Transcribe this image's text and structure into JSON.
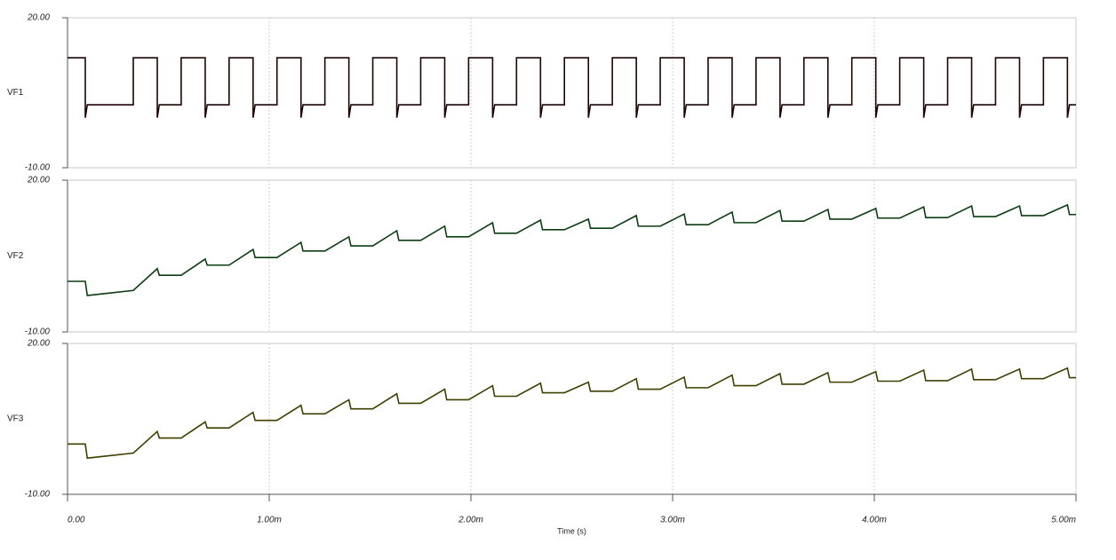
{
  "chart_data": [
    {
      "type": "line",
      "ylabel": "VF1",
      "ylim": [
        -10,
        20
      ],
      "yticks": [
        {
          "value": -10,
          "label": "-10.00"
        },
        {
          "value": 20,
          "label": "20.00"
        }
      ],
      "grid": true,
      "x": [
        0,
        8.8e-05,
        8.8e-05,
        9.8e-05,
        0.000326,
        0.000326,
        0.000445,
        0.000445,
        0.000455,
        0.0005635,
        0.0005635,
        0.0006825,
        0.0006825,
        0.0006925,
        0.000801,
        0.000801,
        0.00092,
        0.00092,
        0.00093,
        0.0010385,
        0.0010385,
        0.0011575,
        0.0011575,
        0.0011675,
        0.001276,
        0.001276,
        0.001395,
        0.001395,
        0.001405,
        0.0015135,
        0.0015135,
        0.0016325,
        0.0016325,
        0.0016425,
        0.001751,
        0.001751,
        0.00187,
        0.00187,
        0.00188,
        0.0019885,
        0.0019885,
        0.0021075,
        0.0021075,
        0.0021175,
        0.002226,
        0.002226,
        0.002345,
        0.002345,
        0.002355,
        0.0024635,
        0.0024635,
        0.0025825,
        0.0025825,
        0.0025925,
        0.002701,
        0.002701,
        0.00282,
        0.00282,
        0.00283,
        0.0029385,
        0.0029385,
        0.0030575,
        0.0030575,
        0.0030675,
        0.003176,
        0.003176,
        0.003295,
        0.003295,
        0.003305,
        0.0034135,
        0.0034135,
        0.0035325,
        0.0035325,
        0.0035425,
        0.003651,
        0.003651,
        0.00377,
        0.00377,
        0.00378,
        0.0038885,
        0.0038885,
        0.0040075,
        0.0040075,
        0.0040175,
        0.004126,
        0.004126,
        0.004245,
        0.004245,
        0.004255,
        0.0043635,
        0.0043635,
        0.0044825,
        0.0044825,
        0.0044925,
        0.004601,
        0.004601,
        0.00472,
        0.00472,
        0.00473,
        0.0048385,
        0.0048385,
        0.0049575,
        0.0049575,
        0.0049675,
        0.005
      ],
      "series": [
        {
          "name": "VF1",
          "color": "#1e0404",
          "values": [
            12,
            12,
            0,
            2.6,
            2.6,
            12,
            12,
            0,
            2.6,
            2.6,
            12,
            12,
            0,
            2.6,
            2.6,
            12,
            12,
            0,
            2.6,
            2.6,
            12,
            12,
            0,
            2.6,
            2.6,
            12,
            12,
            0,
            2.6,
            2.6,
            12,
            12,
            0,
            2.6,
            2.6,
            12,
            12,
            0,
            2.6,
            2.6,
            12,
            12,
            0,
            2.6,
            2.6,
            12,
            12,
            0,
            2.6,
            2.6,
            12,
            12,
            0,
            2.6,
            2.6,
            12,
            12,
            0,
            2.6,
            2.6,
            12,
            12,
            0,
            2.6,
            2.6,
            12,
            12,
            0,
            2.6,
            2.6,
            12,
            12,
            0,
            2.6,
            2.6,
            12,
            12,
            0,
            2.6,
            2.6,
            12,
            12,
            0,
            2.6,
            2.6,
            12,
            12,
            0,
            2.6,
            2.6,
            12,
            12,
            0,
            2.6,
            2.6,
            12,
            12,
            0,
            2.6,
            2.6,
            12,
            12,
            0,
            2.6,
            2.6
          ]
        }
      ]
    },
    {
      "type": "line",
      "ylabel": "VF2",
      "ylim": [
        -10,
        20
      ],
      "yticks": [
        {
          "value": -10,
          "label": "-10.00"
        },
        {
          "value": 20,
          "label": "20.00"
        }
      ],
      "grid": true,
      "x": [
        0,
        8.8e-05,
        8.8e-05,
        9.8e-05,
        0.000326,
        0.000326,
        0.000445,
        0.000445,
        0.000455,
        0.0005635,
        0.0005635,
        0.0006825,
        0.0006825,
        0.0006925,
        0.000801,
        0.000801,
        0.00092,
        0.00092,
        0.00093,
        0.0010385,
        0.0010385,
        0.0011575,
        0.0011575,
        0.0011675,
        0.001276,
        0.001276,
        0.001395,
        0.001395,
        0.001405,
        0.0015135,
        0.0015135,
        0.0016325,
        0.0016325,
        0.0016425,
        0.001751,
        0.001751,
        0.00187,
        0.00187,
        0.00188,
        0.0019885,
        0.0019885,
        0.0021075,
        0.0021075,
        0.0021175,
        0.002226,
        0.002226,
        0.002345,
        0.002345,
        0.002355,
        0.0024635,
        0.0024635,
        0.0025825,
        0.0025825,
        0.0025925,
        0.002701,
        0.002701,
        0.00282,
        0.00282,
        0.00283,
        0.0029385,
        0.0029385,
        0.0030575,
        0.0030575,
        0.0030675,
        0.003176,
        0.003176,
        0.003295,
        0.003295,
        0.003305,
        0.0034135,
        0.0034135,
        0.0035325,
        0.0035325,
        0.0035425,
        0.003651,
        0.003651,
        0.00377,
        0.00377,
        0.00378,
        0.0038885,
        0.0038885,
        0.0040075,
        0.0040075,
        0.0040175,
        0.004126,
        0.004126,
        0.004245,
        0.004245,
        0.004255,
        0.0043635,
        0.0043635,
        0.0044825,
        0.0044825,
        0.0044925,
        0.004601,
        0.004601,
        0.00472,
        0.00472,
        0.00473,
        0.0048385,
        0.0048385,
        0.0049575,
        0.0049575,
        0.0049675,
        0.005
      ],
      "series": [
        {
          "name": "VF2",
          "color": "#0b3d12",
          "values": [
            0,
            0,
            0,
            -2.8,
            -1.8,
            -1.8,
            2.5,
            2.5,
            1.2,
            1.2,
            1.2,
            4.4,
            4.4,
            3.2,
            3.2,
            3.2,
            6.3,
            6.3,
            4.7,
            4.7,
            4.7,
            7.7,
            7.7,
            6,
            6,
            6,
            8.8,
            8.8,
            7,
            7,
            7,
            10,
            10,
            8.1,
            8.1,
            8.1,
            10.9,
            10.9,
            8.8,
            8.8,
            8.8,
            11.6,
            11.6,
            9.5,
            9.5,
            9.5,
            12.1,
            12.1,
            10.2,
            10.2,
            10.2,
            12.3,
            12.3,
            10.5,
            10.5,
            10.5,
            13,
            13,
            10.9,
            10.9,
            10.9,
            13.3,
            13.3,
            11.2,
            11.2,
            11.2,
            13.7,
            13.7,
            11.6,
            11.6,
            11.6,
            14,
            14,
            11.9,
            11.9,
            11.9,
            14.2,
            14.2,
            12.3,
            12.3,
            12.3,
            14.4,
            14.4,
            12.5,
            12.5,
            12.5,
            14.7,
            14.7,
            12.6,
            12.6,
            12.6,
            14.9,
            14.9,
            12.8,
            12.8,
            12.8,
            14.9,
            14.9,
            13,
            13,
            13,
            15.1,
            15.1,
            13.2,
            13.2
          ]
        }
      ]
    },
    {
      "type": "line",
      "ylabel": "VF3",
      "ylim": [
        -10,
        20
      ],
      "yticks": [
        {
          "value": -10,
          "label": "-10.00"
        },
        {
          "value": 20,
          "label": "20.00"
        }
      ],
      "grid": true,
      "xlabel": "Time (s)",
      "xlim": [
        0,
        0.005
      ],
      "xticks": [
        {
          "value": 0,
          "label": "0.00"
        },
        {
          "value": 0.001,
          "label": "1.00m"
        },
        {
          "value": 0.002,
          "label": "2.00m"
        },
        {
          "value": 0.003,
          "label": "3.00m"
        },
        {
          "value": 0.004,
          "label": "4.00m"
        },
        {
          "value": 0.005,
          "label": "5.00m"
        }
      ],
      "x": [
        0,
        8.8e-05,
        8.8e-05,
        9.8e-05,
        0.000326,
        0.000326,
        0.000445,
        0.000445,
        0.000455,
        0.0005635,
        0.0005635,
        0.0006825,
        0.0006825,
        0.0006925,
        0.000801,
        0.000801,
        0.00092,
        0.00092,
        0.00093,
        0.0010385,
        0.0010385,
        0.0011575,
        0.0011575,
        0.0011675,
        0.001276,
        0.001276,
        0.001395,
        0.001395,
        0.001405,
        0.0015135,
        0.0015135,
        0.0016325,
        0.0016325,
        0.0016425,
        0.001751,
        0.001751,
        0.00187,
        0.00187,
        0.00188,
        0.0019885,
        0.0019885,
        0.0021075,
        0.0021075,
        0.0021175,
        0.002226,
        0.002226,
        0.002345,
        0.002345,
        0.002355,
        0.0024635,
        0.0024635,
        0.0025825,
        0.0025825,
        0.0025925,
        0.002701,
        0.002701,
        0.00282,
        0.00282,
        0.00283,
        0.0029385,
        0.0029385,
        0.0030575,
        0.0030575,
        0.0030675,
        0.003176,
        0.003176,
        0.003295,
        0.003295,
        0.003305,
        0.0034135,
        0.0034135,
        0.0035325,
        0.0035325,
        0.0035425,
        0.003651,
        0.003651,
        0.00377,
        0.00377,
        0.00378,
        0.0038885,
        0.0038885,
        0.0040075,
        0.0040075,
        0.0040175,
        0.004126,
        0.004126,
        0.004245,
        0.004245,
        0.004255,
        0.0043635,
        0.0043635,
        0.0044825,
        0.0044825,
        0.0044925,
        0.004601,
        0.004601,
        0.00472,
        0.00472,
        0.00473,
        0.0048385,
        0.0048385,
        0.0049575,
        0.0049575,
        0.0049675,
        0.005
      ],
      "series": [
        {
          "name": "VF3",
          "color": "#3f3f00",
          "values": [
            0,
            0,
            0,
            -2.8,
            -1.8,
            -1.8,
            2.5,
            2.5,
            1.2,
            1.2,
            1.2,
            4.4,
            4.4,
            3.2,
            3.2,
            3.2,
            6.3,
            6.3,
            4.7,
            4.7,
            4.7,
            7.7,
            7.7,
            6,
            6,
            6,
            8.8,
            8.8,
            7,
            7,
            7,
            10,
            10,
            8.1,
            8.1,
            8.1,
            10.9,
            10.9,
            8.8,
            8.8,
            8.8,
            11.6,
            11.6,
            9.5,
            9.5,
            9.5,
            12.1,
            12.1,
            10.2,
            10.2,
            10.2,
            12.3,
            12.3,
            10.5,
            10.5,
            10.5,
            13,
            13,
            10.9,
            10.9,
            10.9,
            13.3,
            13.3,
            11.2,
            11.2,
            11.2,
            13.7,
            13.7,
            11.6,
            11.6,
            11.6,
            14,
            14,
            11.9,
            11.9,
            11.9,
            14.2,
            14.2,
            12.3,
            12.3,
            12.3,
            14.4,
            14.4,
            12.5,
            12.5,
            12.5,
            14.7,
            14.7,
            12.6,
            12.6,
            12.6,
            14.9,
            14.9,
            12.8,
            12.8,
            12.8,
            14.9,
            14.9,
            13,
            13,
            13,
            15.1,
            15.1,
            13.2,
            13.2
          ]
        }
      ]
    }
  ]
}
